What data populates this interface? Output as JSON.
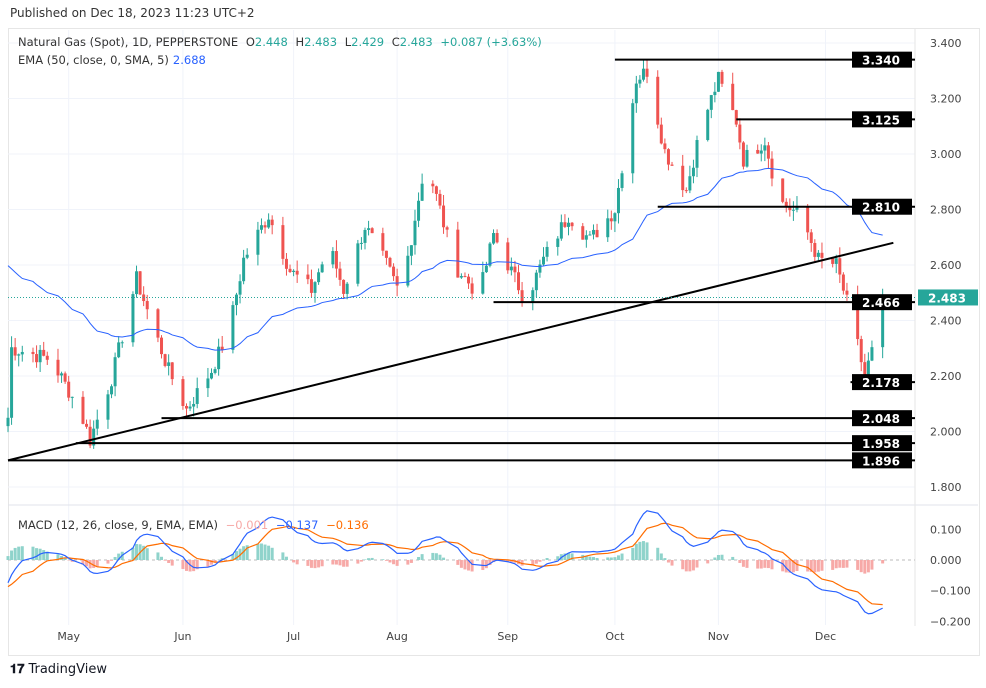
{
  "published": "Published on Dec 18, 2023 11:23 UTC+2",
  "legend": {
    "symbol": "Natural Gas (Spot), 1D, PEPPERSTONE",
    "o_label": "O",
    "o": "2.448",
    "h_label": "H",
    "h": "2.483",
    "l_label": "L",
    "l": "2.429",
    "c_label": "C",
    "c": "2.483",
    "change": "+0.087 (+3.63%)",
    "ema_label": "EMA (50, close, 0, SMA, 5)",
    "ema": "2.688",
    "macd_label": "MACD (12, 26, close, 9, EMA, EMA)",
    "macd_hist": "−0.001",
    "macd": "−0.137",
    "macd_signal": "−0.136"
  },
  "brand": "TradingView",
  "colors": {
    "up": "#26a69a",
    "down": "#ef5350",
    "ema": "#2962ff",
    "signal": "#ff6d00"
  },
  "chart_data": {
    "type": "candlestick",
    "title": "Natural Gas (Spot), 1D",
    "ylim": [
      1.75,
      3.43
    ],
    "yticks": [
      "3.400",
      "3.200",
      "3.000",
      "2.800",
      "2.600",
      "2.400",
      "2.200",
      "2.000",
      "1.800"
    ],
    "macd_ylim": [
      -0.23,
      0.14
    ],
    "macd_ticks": [
      "0.100",
      "0.000",
      "−0.100",
      "−0.200"
    ],
    "x_months": [
      {
        "label": "May",
        "day": 17
      },
      {
        "label": "Jun",
        "day": 49
      },
      {
        "label": "Jul",
        "day": 80
      },
      {
        "label": "Aug",
        "day": 109
      },
      {
        "label": "Sep",
        "day": 140
      },
      {
        "label": "Oct",
        "day": 170
      },
      {
        "label": "Nov",
        "day": 199
      },
      {
        "label": "Dec",
        "day": 229
      }
    ],
    "price_path": [
      [
        0,
        2.05
      ],
      [
        1,
        2.3
      ],
      [
        4,
        2.29
      ],
      [
        12,
        2.26
      ],
      [
        20,
        2.08
      ],
      [
        23,
        1.97
      ],
      [
        29,
        2.19
      ],
      [
        36,
        2.55
      ],
      [
        40,
        2.4
      ],
      [
        45,
        2.22
      ],
      [
        50,
        2.08
      ],
      [
        57,
        2.22
      ],
      [
        62,
        2.37
      ],
      [
        66,
        2.62
      ],
      [
        73,
        2.78
      ],
      [
        79,
        2.58
      ],
      [
        85,
        2.51
      ],
      [
        90,
        2.67
      ],
      [
        94,
        2.51
      ],
      [
        100,
        2.74
      ],
      [
        106,
        2.6
      ],
      [
        110,
        2.49
      ],
      [
        117,
        2.98
      ],
      [
        121,
        2.8
      ],
      [
        125,
        2.6
      ],
      [
        132,
        2.49
      ],
      [
        136,
        2.71
      ],
      [
        145,
        2.47
      ],
      [
        150,
        2.62
      ],
      [
        157,
        2.78
      ],
      [
        163,
        2.69
      ],
      [
        170,
        2.8
      ],
      [
        176,
        3.27
      ],
      [
        179,
        3.3
      ],
      [
        184,
        3.01
      ],
      [
        190,
        2.87
      ],
      [
        194,
        3.09
      ],
      [
        199,
        3.27
      ],
      [
        204,
        3.12
      ],
      [
        206,
        2.98
      ],
      [
        212,
        3.05
      ],
      [
        216,
        2.83
      ],
      [
        222,
        2.78
      ],
      [
        227,
        2.62
      ],
      [
        232,
        2.6
      ],
      [
        236,
        2.42
      ],
      [
        240,
        2.2
      ],
      [
        243,
        2.33
      ],
      [
        245,
        2.483
      ]
    ],
    "levels": [
      {
        "value": 3.34,
        "label": "3.340",
        "from_day": 170
      },
      {
        "value": 3.125,
        "label": "3.125",
        "from_day": 204
      },
      {
        "value": 2.81,
        "label": "2.810",
        "from_day": 182
      },
      {
        "value": 2.466,
        "label": "2.466",
        "from_day": 136
      },
      {
        "value": 2.178,
        "label": "2.178",
        "from_day": 236
      },
      {
        "value": 2.048,
        "label": "2.048",
        "from_day": 43
      },
      {
        "value": 1.958,
        "label": "1.958",
        "from_day": 19
      },
      {
        "value": 1.896,
        "label": "1.896",
        "from_day": 0
      }
    ],
    "trendline": [
      [
        0,
        1.896
      ],
      [
        248,
        2.68
      ]
    ],
    "last_price": {
      "value": 2.483,
      "label": "2.483"
    }
  }
}
